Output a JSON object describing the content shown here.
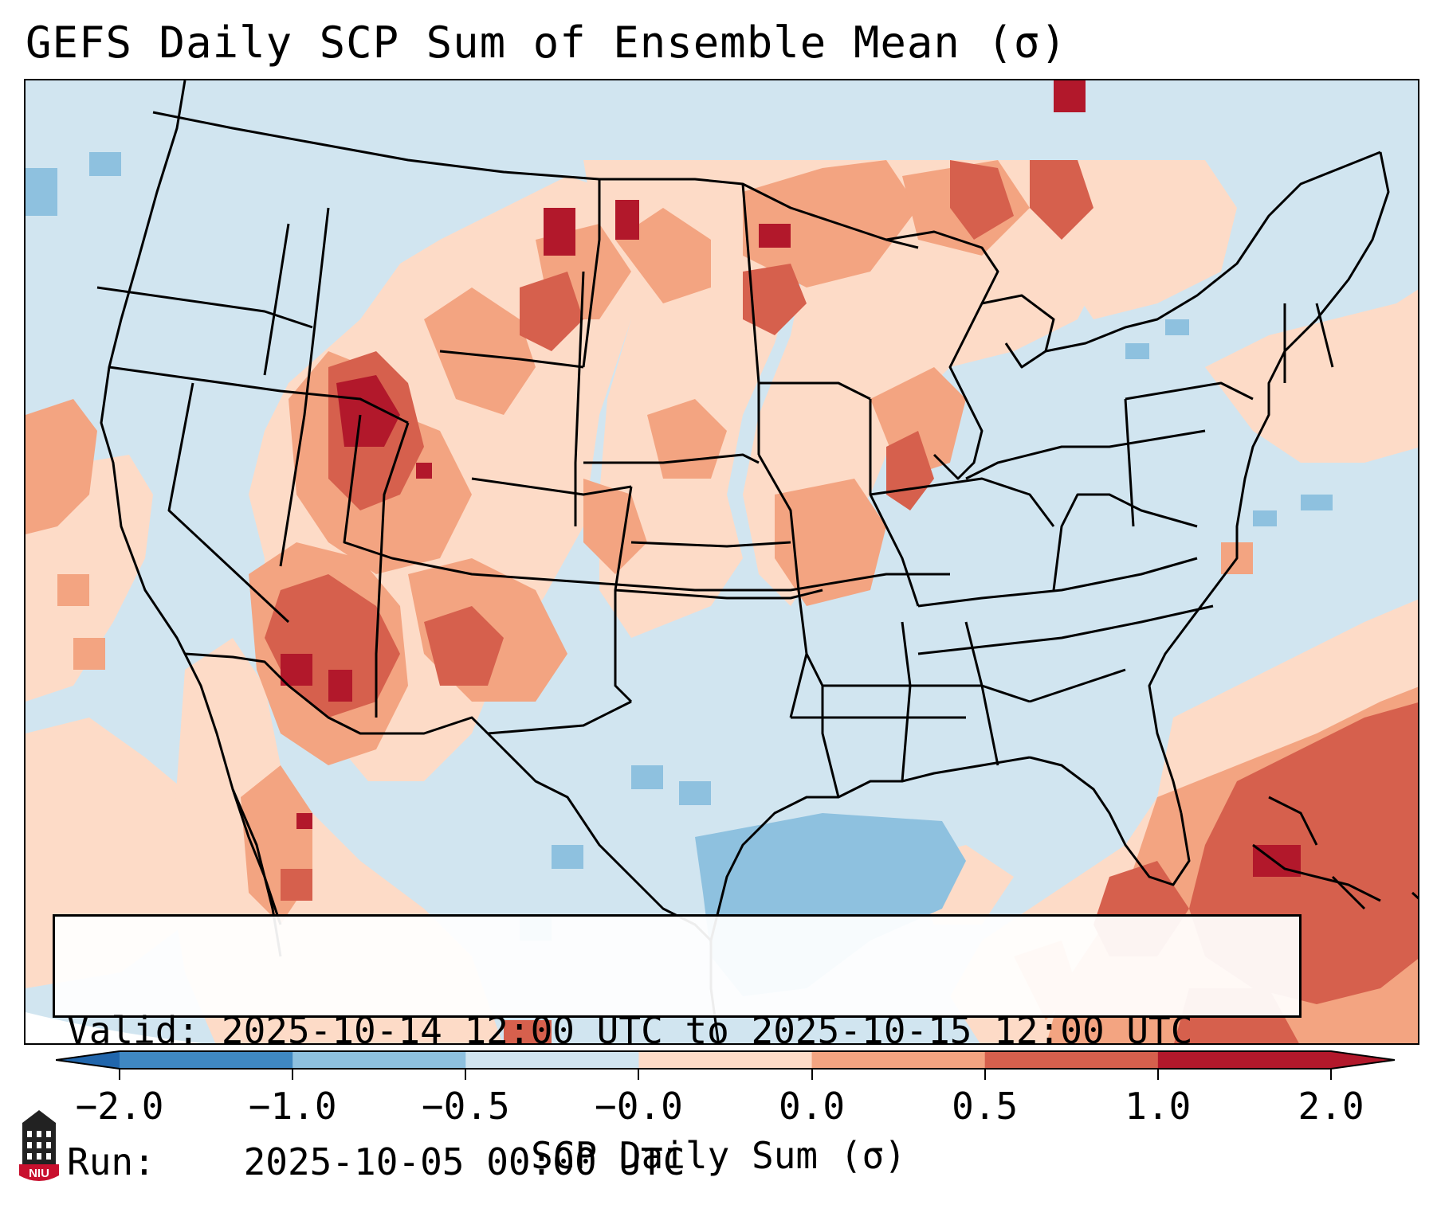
{
  "title": "GEFS Daily SCP Sum of Ensemble Mean (σ)",
  "info": {
    "valid_label": "Valid:",
    "valid_value": "2025-10-14 12:00 UTC to 2025-10-15 12:00 UTC",
    "run_label": "Run:",
    "run_value": "2025-10-05 00:00 UTC"
  },
  "colorbar": {
    "label": "SCP Daily Sum (σ)",
    "ticks": [
      "−2.0",
      "−1.0",
      "−0.5",
      "−0.0",
      "0.0",
      "0.5",
      "1.0",
      "2.0"
    ],
    "bin_colors": [
      "#3f88c2",
      "#8ec1df",
      "#d1e5f0",
      "#fddbc7",
      "#f3a481",
      "#d6604d",
      "#b2182b"
    ],
    "under_color": "#2166ac",
    "over_color": "#b2182b"
  },
  "map": {
    "ocean_water_color": "#d1e5f0",
    "field_colors": {
      "strong_negative": "#8ec1df",
      "weak_negative": "#d1e5f0",
      "weak_positive": "#fddbc7",
      "moderate_positive": "#f3a481",
      "strong_positive": "#d6604d",
      "extreme_positive": "#b2182b"
    }
  },
  "logo": {
    "text": "NIU",
    "color": "#c8102e"
  }
}
